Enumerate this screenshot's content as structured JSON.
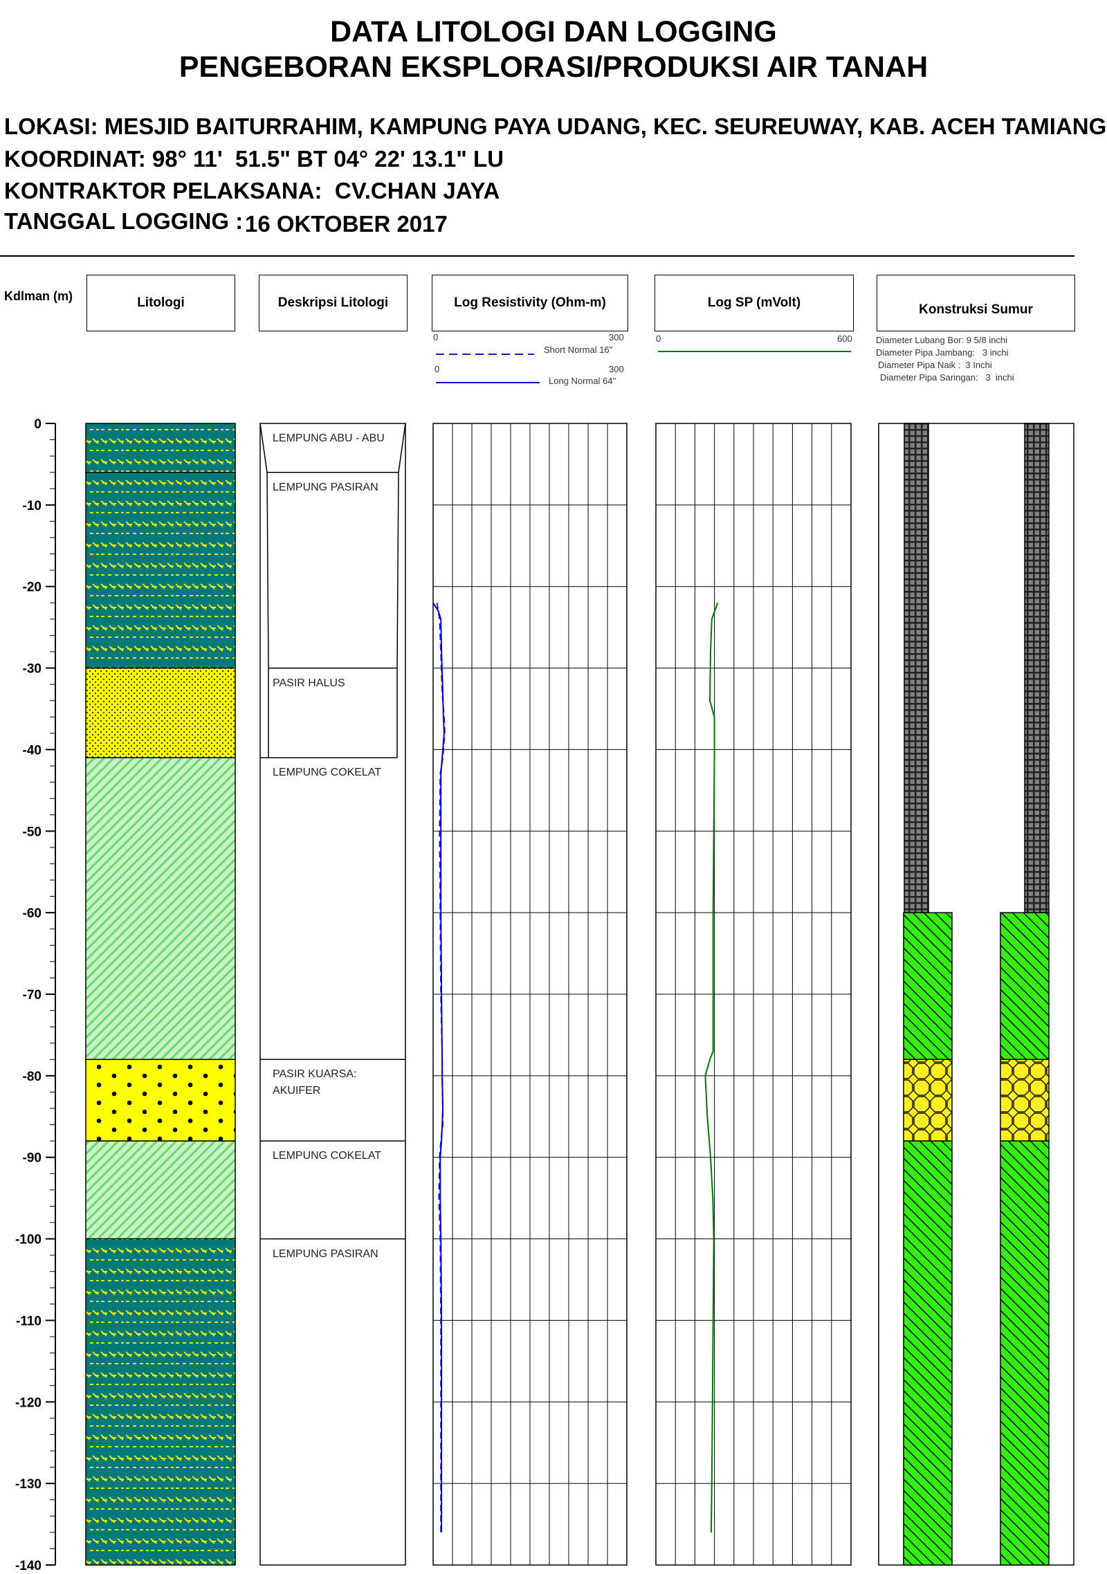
{
  "header": {
    "title_line1": "DATA LITOLOGI DAN LOGGING",
    "title_line2": "PENGEBORAN EKSPLORASI/PRODUKSI AIR TANAH",
    "lokasi": "LOKASI: MESJID BAITURRAHIM, KAMPUNG PAYA UDANG, KEC. SEUREUWAY, KAB. ACEH TAMIANG",
    "koordinat": "KOORDINAT: 98° 11'  51.5\" BT 04° 22' 13.1\" LU",
    "kontraktor": "KONTRAKTOR PELAKSANA:  CV.CHAN JAYA",
    "tanggal_label": "TANGGAL LOGGING :",
    "tanggal_value": "16 OKTOBER 2017"
  },
  "columns": {
    "depth_label": "Kdlman (m)",
    "litologi": "Litologi",
    "deskripsi": "Deskripsi Litologi",
    "resistivity": "Log Resistivity (Ohm-m)",
    "sp": "Log SP (mVolt)",
    "konstruksi": "Konstruksi Sumur"
  },
  "legend": {
    "res_min": "0",
    "res_max": "300",
    "short_normal": "Short Normal 16\"",
    "long_normal": "Long Normal 64\"",
    "sp_min": "0",
    "sp_max": "600",
    "diam_bor": "Diameter Lubang Bor: 9 5/8 inchi",
    "diam_jambang": "Diameter Pipa Jambang:   3 inchi",
    "diam_naik": "Diameter Pipa Naik :  3 Inchi",
    "diam_saringan": "Diameter Pipa Saringan:   3  inchi"
  },
  "depth_axis": {
    "min": 0,
    "max": -140,
    "step": -10,
    "tick_labels": [
      "0",
      "-10",
      "-20",
      "-30",
      "-40",
      "-50",
      "-60",
      "-70",
      "-80",
      "-90",
      "-100",
      "-110",
      "-120",
      "-130",
      "-140"
    ]
  },
  "lithology": [
    {
      "top": 0,
      "bottom": 6,
      "type": "clay-gray",
      "description": "LEMPUNG ABU - ABU"
    },
    {
      "top": 6,
      "bottom": 30,
      "type": "sandy-clay",
      "description": "LEMPUNG PASIRAN"
    },
    {
      "top": 30,
      "bottom": 41,
      "type": "fine-sand",
      "description": "PASIR HALUS"
    },
    {
      "top": 41,
      "bottom": 78,
      "type": "brown-clay",
      "description": "LEMPUNG COKELAT"
    },
    {
      "top": 78,
      "bottom": 88,
      "type": "quartz-sand",
      "description": "PASIR KUARSA:\nAKUIFER"
    },
    {
      "top": 88,
      "bottom": 100,
      "type": "brown-clay",
      "description": "LEMPUNG COKELAT"
    },
    {
      "top": 100,
      "bottom": 140,
      "type": "sandy-clay",
      "description": "LEMPUNG PASIRAN"
    }
  ],
  "well_construction": [
    {
      "top": 0,
      "bottom": 60,
      "type": "pipe-jambang-naik"
    },
    {
      "top": 60,
      "bottom": 78,
      "type": "gravel-fill"
    },
    {
      "top": 78,
      "bottom": 88,
      "type": "screen"
    },
    {
      "top": 88,
      "bottom": 140,
      "type": "gravel-fill"
    }
  ],
  "colors": {
    "sandy_clay_bg": "#007a78",
    "sand_yellow": "#ffff00",
    "clay_green": "#9de39d",
    "gravel_green": "#33ee11",
    "pipe_gray": "#777777",
    "short_normal": "#1a1acc",
    "long_normal": "#0000cc",
    "sp_line": "#007700"
  },
  "chart_data": {
    "type": "line",
    "series": [
      {
        "name": "Short Normal 16\"",
        "axis": "resistivity",
        "depth": [
          22,
          24,
          28,
          33,
          36,
          38,
          41,
          43,
          50,
          60,
          70,
          78,
          80,
          84,
          86,
          88,
          90,
          95,
          100,
          110,
          120,
          130,
          136
        ],
        "values": [
          6,
          10,
          12,
          14,
          17,
          18,
          15,
          11,
          10,
          11,
          12,
          14,
          14,
          15,
          15,
          12,
          10,
          9,
          11,
          12,
          12,
          12,
          12
        ]
      },
      {
        "name": "Long Normal 64\"",
        "axis": "resistivity",
        "depth": [
          22,
          23,
          24,
          28,
          33,
          36,
          38,
          41,
          43,
          50,
          60,
          70,
          78,
          80,
          84,
          86,
          88,
          90,
          95,
          100,
          110,
          120,
          130,
          136
        ],
        "values": [
          0,
          8,
          12,
          13,
          15,
          16,
          17,
          14,
          12,
          12,
          12,
          13,
          14,
          14,
          15,
          14,
          13,
          11,
          11,
          12,
          13,
          13,
          13,
          13
        ]
      },
      {
        "axis": "sp",
        "depth": [
          22,
          24,
          28,
          34,
          36,
          40,
          50,
          60,
          70,
          77,
          78,
          80,
          85,
          90,
          95,
          100,
          110,
          120,
          130,
          136
        ],
        "values": [
          190,
          172,
          168,
          166,
          180,
          180,
          178,
          176,
          176,
          176,
          166,
          152,
          158,
          168,
          175,
          178,
          176,
          174,
          172,
          170
        ]
      }
    ],
    "depth_range": [
      0,
      140
    ],
    "resistivity_range": [
      0,
      300
    ],
    "sp_range": [
      0,
      600
    ]
  }
}
